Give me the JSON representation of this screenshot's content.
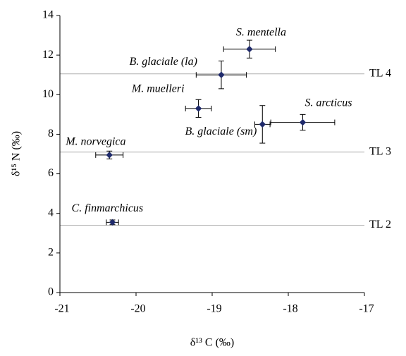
{
  "chart_data": {
    "type": "scatter",
    "x_label": "δ¹³ C (‰)",
    "y_label": "δ¹⁵ N (‰)",
    "xlim": [
      -21,
      -17
    ],
    "xticks": [
      -21,
      -20,
      -19,
      -18,
      -17
    ],
    "ylim": [
      0,
      14
    ],
    "yticks": [
      0,
      2,
      4,
      6,
      8,
      10,
      12,
      14
    ],
    "marker_color": "#1f2a6b",
    "series": [
      {
        "name": "S. mentella",
        "x": -18.51,
        "y": 12.3,
        "xerr": 0.34,
        "yerr": 0.45
      },
      {
        "name": "B. glaciale (la)",
        "x": -18.88,
        "y": 11.0,
        "xerr": 0.33,
        "yerr": 0.7
      },
      {
        "name": "M. muelleri",
        "x": -19.18,
        "y": 9.3,
        "xerr": 0.17,
        "yerr": 0.45
      },
      {
        "name": "B. glaciale (sm)",
        "x": -18.34,
        "y": 8.5,
        "xerr": 0.1,
        "yerr": 0.95
      },
      {
        "name": "S. arcticus",
        "x": -17.81,
        "y": 8.6,
        "xerr": 0.42,
        "yerr": 0.4
      },
      {
        "name": "M. norvegica",
        "x": -20.35,
        "y": 6.95,
        "xerr": 0.18,
        "yerr": 0.2
      },
      {
        "name": "C. finmarchicus",
        "x": -20.31,
        "y": 3.55,
        "xerr": 0.08,
        "yerr": 0.12
      }
    ],
    "reference_lines": [
      {
        "label": "TL 4",
        "y": 11.05
      },
      {
        "label": "TL 3",
        "y": 7.1
      },
      {
        "label": "TL 2",
        "y": 3.4
      }
    ]
  }
}
